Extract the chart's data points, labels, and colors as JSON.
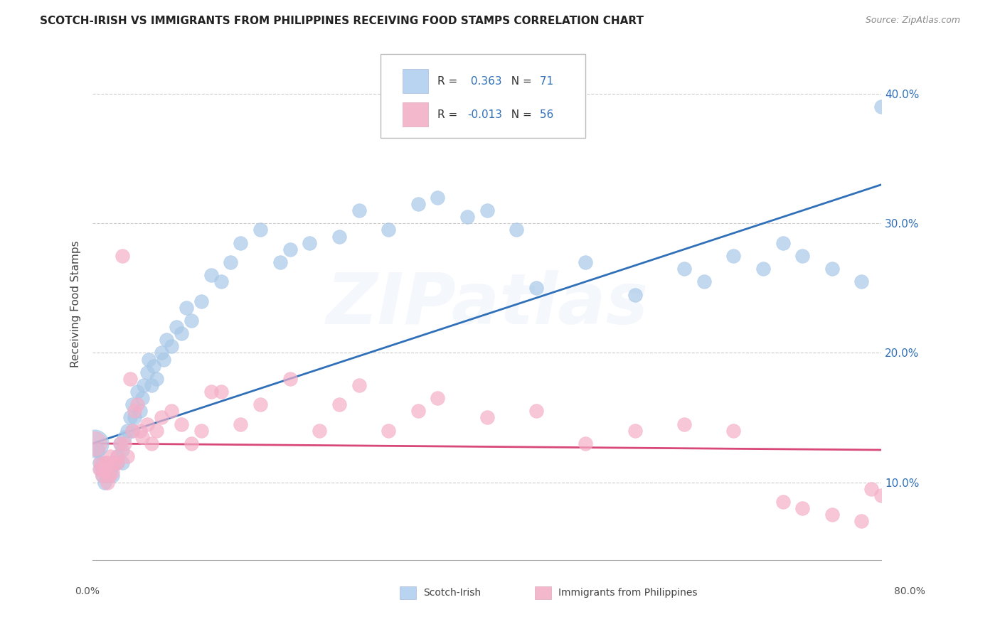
{
  "title": "SCOTCH-IRISH VS IMMIGRANTS FROM PHILIPPINES RECEIVING FOOD STAMPS CORRELATION CHART",
  "source": "Source: ZipAtlas.com",
  "ylabel": "Receiving Food Stamps",
  "ytick_vals": [
    0.1,
    0.2,
    0.3,
    0.4
  ],
  "ytick_labels": [
    "10.0%",
    "20.0%",
    "30.0%",
    "40.0%"
  ],
  "xlim": [
    0.0,
    0.8
  ],
  "ylim": [
    0.04,
    0.435
  ],
  "r_blue": 0.363,
  "n_blue": 71,
  "r_pink": -0.013,
  "n_pink": 56,
  "blue_scatter_color": "#a8c8e8",
  "pink_scatter_color": "#f4b0c8",
  "blue_line_color": "#3070b8",
  "pink_line_color": "#d84878",
  "blue_legend_fill": "#b8d4f0",
  "pink_legend_fill": "#f4b8cc",
  "background": "#ffffff",
  "grid_color": "#cccccc",
  "watermark_color": "#b8cce8",
  "watermark_text": "ZIPatlas",
  "legend_label_blue": "R =  0.363   N =  71",
  "legend_label_pink": "R = -0.013   N =  56",
  "bottom_label_blue": "Scotch-Irish",
  "bottom_label_pink": "Immigrants from Philippines",
  "blue_line_y0": 0.13,
  "blue_line_y1": 0.33,
  "pink_line_y0": 0.13,
  "pink_line_y1": 0.125,
  "blue_x": [
    0.005,
    0.007,
    0.008,
    0.01,
    0.01,
    0.01,
    0.012,
    0.013,
    0.015,
    0.015,
    0.017,
    0.018,
    0.02,
    0.022,
    0.025,
    0.025,
    0.028,
    0.03,
    0.03,
    0.032,
    0.035,
    0.038,
    0.04,
    0.04,
    0.042,
    0.045,
    0.048,
    0.05,
    0.052,
    0.055,
    0.057,
    0.06,
    0.062,
    0.065,
    0.07,
    0.072,
    0.075,
    0.08,
    0.085,
    0.09,
    0.095,
    0.1,
    0.11,
    0.12,
    0.13,
    0.14,
    0.15,
    0.17,
    0.19,
    0.2,
    0.22,
    0.25,
    0.27,
    0.3,
    0.33,
    0.35,
    0.38,
    0.4,
    0.43,
    0.45,
    0.5,
    0.55,
    0.6,
    0.62,
    0.65,
    0.68,
    0.7,
    0.72,
    0.75,
    0.78,
    0.8
  ],
  "blue_y": [
    0.125,
    0.115,
    0.11,
    0.105,
    0.11,
    0.115,
    0.1,
    0.108,
    0.105,
    0.112,
    0.108,
    0.11,
    0.105,
    0.115,
    0.115,
    0.12,
    0.13,
    0.115,
    0.125,
    0.135,
    0.14,
    0.15,
    0.14,
    0.16,
    0.15,
    0.17,
    0.155,
    0.165,
    0.175,
    0.185,
    0.195,
    0.175,
    0.19,
    0.18,
    0.2,
    0.195,
    0.21,
    0.205,
    0.22,
    0.215,
    0.235,
    0.225,
    0.24,
    0.26,
    0.255,
    0.27,
    0.285,
    0.295,
    0.27,
    0.28,
    0.285,
    0.29,
    0.31,
    0.295,
    0.315,
    0.32,
    0.305,
    0.31,
    0.295,
    0.25,
    0.27,
    0.245,
    0.265,
    0.255,
    0.275,
    0.265,
    0.285,
    0.275,
    0.265,
    0.255,
    0.39
  ],
  "pink_x": [
    0.005,
    0.007,
    0.008,
    0.01,
    0.01,
    0.012,
    0.013,
    0.015,
    0.015,
    0.017,
    0.018,
    0.02,
    0.022,
    0.025,
    0.025,
    0.028,
    0.03,
    0.032,
    0.035,
    0.038,
    0.04,
    0.042,
    0.045,
    0.048,
    0.05,
    0.055,
    0.06,
    0.065,
    0.07,
    0.08,
    0.09,
    0.1,
    0.11,
    0.12,
    0.13,
    0.15,
    0.17,
    0.2,
    0.23,
    0.25,
    0.27,
    0.3,
    0.33,
    0.35,
    0.4,
    0.45,
    0.5,
    0.55,
    0.6,
    0.65,
    0.7,
    0.72,
    0.75,
    0.78,
    0.79,
    0.8
  ],
  "pink_y": [
    0.125,
    0.11,
    0.115,
    0.105,
    0.11,
    0.108,
    0.115,
    0.1,
    0.115,
    0.105,
    0.12,
    0.108,
    0.115,
    0.12,
    0.115,
    0.13,
    0.275,
    0.13,
    0.12,
    0.18,
    0.14,
    0.155,
    0.16,
    0.14,
    0.135,
    0.145,
    0.13,
    0.14,
    0.15,
    0.155,
    0.145,
    0.13,
    0.14,
    0.17,
    0.17,
    0.145,
    0.16,
    0.18,
    0.14,
    0.16,
    0.175,
    0.14,
    0.155,
    0.165,
    0.15,
    0.155,
    0.13,
    0.14,
    0.145,
    0.14,
    0.085,
    0.08,
    0.075,
    0.07,
    0.095,
    0.09
  ]
}
